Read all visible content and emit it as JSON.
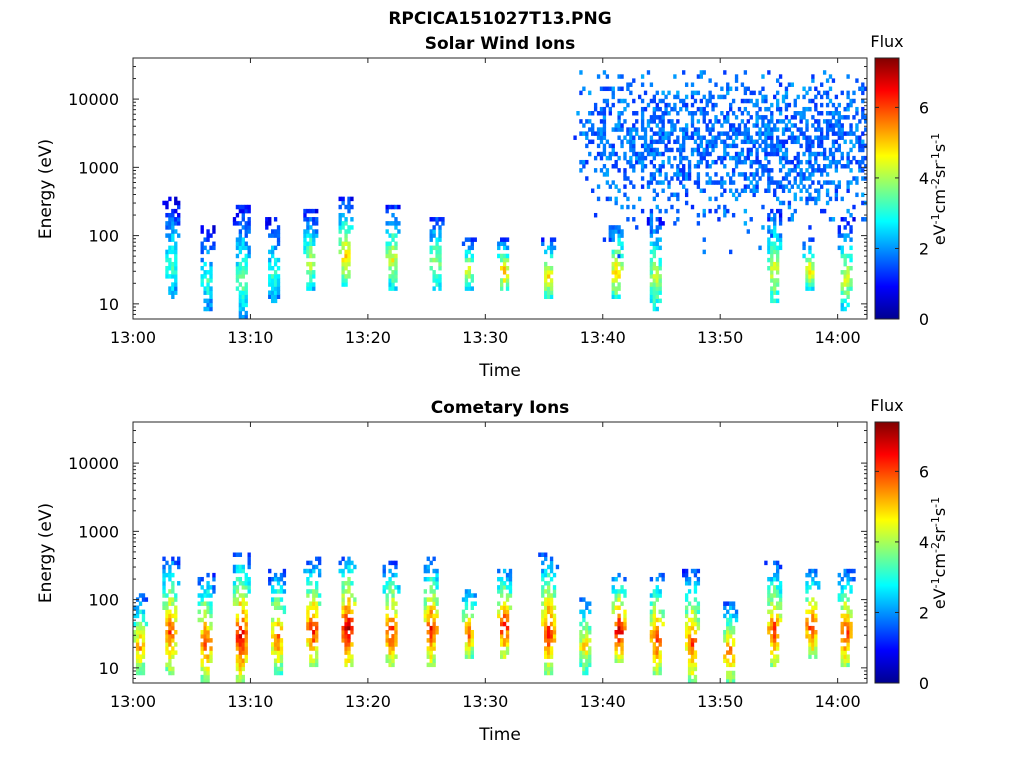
{
  "figure": {
    "title": "RPCICA151027T13.PNG"
  },
  "colormap": [
    "#00008f",
    "#0000ff",
    "#0080ff",
    "#00ffff",
    "#80ff80",
    "#ffff00",
    "#ff8000",
    "#ff0000",
    "#800000"
  ],
  "chart_data": [
    {
      "type": "heatmap",
      "title": "Solar Wind Ions",
      "xlabel": "Time",
      "ylabel": "Energy (eV)",
      "x_ticks": [
        "13:00",
        "13:10",
        "13:20",
        "13:30",
        "13:40",
        "13:50",
        "14:00"
      ],
      "x_range_minutes": [
        0,
        62.5
      ],
      "y_scale": "log",
      "y_ticks": [
        "10",
        "100",
        "1000",
        "10000"
      ],
      "y_range": [
        6,
        40000
      ],
      "colorbar": {
        "label_top": "Flux",
        "unit_label": "eV-1cm-2sr-1s-1",
        "ticks": [
          "0",
          "2",
          "4",
          "6"
        ],
        "range": [
          0,
          7.4
        ]
      },
      "features": [
        {
          "kind": "burst",
          "t": 3.3,
          "e_low": 12,
          "e_high": 350,
          "peak": 3.5
        },
        {
          "kind": "burst",
          "t": 6.3,
          "e_low": 8,
          "e_high": 150,
          "peak": 3.3
        },
        {
          "kind": "burst",
          "t": 9.3,
          "e_low": 6,
          "e_high": 300,
          "peak": 3.8
        },
        {
          "kind": "burst",
          "t": 12.0,
          "e_low": 10,
          "e_high": 200,
          "peak": 3.3
        },
        {
          "kind": "burst",
          "t": 15.1,
          "e_low": 16,
          "e_high": 250,
          "peak": 4.4
        },
        {
          "kind": "burst",
          "t": 18.1,
          "e_low": 18,
          "e_high": 350,
          "peak": 5.2
        },
        {
          "kind": "burst",
          "t": 22.1,
          "e_low": 16,
          "e_high": 300,
          "peak": 4.6
        },
        {
          "kind": "burst",
          "t": 25.8,
          "e_low": 16,
          "e_high": 200,
          "peak": 4.4
        },
        {
          "kind": "burst",
          "t": 28.6,
          "e_low": 16,
          "e_high": 100,
          "peak": 4.6
        },
        {
          "kind": "burst",
          "t": 31.6,
          "e_low": 16,
          "e_high": 90,
          "peak": 5.4
        },
        {
          "kind": "burst",
          "t": 35.4,
          "e_low": 12,
          "e_high": 100,
          "peak": 5.0
        },
        {
          "kind": "burst",
          "t": 41.2,
          "e_low": 12,
          "e_high": 150,
          "peak": 5.3
        },
        {
          "kind": "burst",
          "t": 44.5,
          "e_low": 8,
          "e_high": 200,
          "peak": 4.4
        },
        {
          "kind": "burst",
          "t": 54.6,
          "e_low": 10,
          "e_high": 250,
          "peak": 4.6
        },
        {
          "kind": "burst",
          "t": 57.6,
          "e_low": 16,
          "e_high": 100,
          "peak": 5.0
        },
        {
          "kind": "burst",
          "t": 60.7,
          "e_low": 8,
          "e_high": 180,
          "peak": 4.6
        },
        {
          "kind": "scatter",
          "t_start": 37.5,
          "t_end": 62.5,
          "e_low": 50,
          "e_high": 25000,
          "peak_energy": 2500,
          "level": 1.5
        }
      ]
    },
    {
      "type": "heatmap",
      "title": "Cometary Ions",
      "xlabel": "Time",
      "ylabel": "Energy (eV)",
      "x_ticks": [
        "13:00",
        "13:10",
        "13:20",
        "13:30",
        "13:40",
        "13:50",
        "14:00"
      ],
      "x_range_minutes": [
        0,
        62.5
      ],
      "y_scale": "log",
      "y_ticks": [
        "10",
        "100",
        "1000",
        "10000"
      ],
      "y_range": [
        6,
        40000
      ],
      "colorbar": {
        "label_top": "Flux",
        "unit_label": "eV-1cm-2sr-1s-1",
        "ticks": [
          "0",
          "2",
          "4",
          "6"
        ],
        "range": [
          0,
          7.4
        ]
      },
      "features": [
        {
          "kind": "burst",
          "t": 0.6,
          "e_low": 8,
          "e_high": 120,
          "peak": 5.6
        },
        {
          "kind": "burst",
          "t": 3.2,
          "e_low": 8,
          "e_high": 450,
          "peak": 6.2
        },
        {
          "kind": "burst",
          "t": 6.2,
          "e_low": 6,
          "e_high": 250,
          "peak": 6.4
        },
        {
          "kind": "burst",
          "t": 9.2,
          "e_low": 6,
          "e_high": 500,
          "peak": 7.0
        },
        {
          "kind": "burst",
          "t": 12.3,
          "e_low": 8,
          "e_high": 300,
          "peak": 6.0
        },
        {
          "kind": "burst",
          "t": 15.3,
          "e_low": 10,
          "e_high": 400,
          "peak": 6.6
        },
        {
          "kind": "burst",
          "t": 18.3,
          "e_low": 10,
          "e_high": 450,
          "peak": 7.2
        },
        {
          "kind": "burst",
          "t": 22.0,
          "e_low": 10,
          "e_high": 350,
          "peak": 6.6
        },
        {
          "kind": "burst",
          "t": 25.4,
          "e_low": 10,
          "e_high": 450,
          "peak": 6.4
        },
        {
          "kind": "burst",
          "t": 28.6,
          "e_low": 14,
          "e_high": 150,
          "peak": 6.0
        },
        {
          "kind": "burst",
          "t": 31.6,
          "e_low": 14,
          "e_high": 300,
          "peak": 6.8
        },
        {
          "kind": "burst",
          "t": 35.4,
          "e_low": 8,
          "e_high": 500,
          "peak": 6.6
        },
        {
          "kind": "burst",
          "t": 38.5,
          "e_low": 8,
          "e_high": 120,
          "peak": 5.2
        },
        {
          "kind": "burst",
          "t": 41.4,
          "e_low": 12,
          "e_high": 250,
          "peak": 7.0
        },
        {
          "kind": "burst",
          "t": 44.6,
          "e_low": 8,
          "e_high": 250,
          "peak": 6.4
        },
        {
          "kind": "burst",
          "t": 47.6,
          "e_low": 6,
          "e_high": 300,
          "peak": 6.2
        },
        {
          "kind": "burst",
          "t": 50.8,
          "e_low": 6,
          "e_high": 100,
          "peak": 6.0
        },
        {
          "kind": "burst",
          "t": 54.6,
          "e_low": 10,
          "e_high": 350,
          "peak": 6.4
        },
        {
          "kind": "burst",
          "t": 57.8,
          "e_low": 14,
          "e_high": 300,
          "peak": 6.6
        },
        {
          "kind": "burst",
          "t": 60.7,
          "e_low": 10,
          "e_high": 300,
          "peak": 6.4
        }
      ]
    }
  ]
}
